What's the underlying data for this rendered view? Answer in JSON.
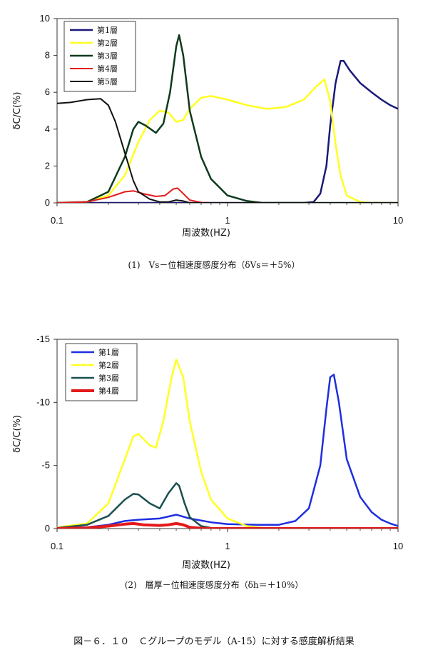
{
  "figure_caption": "図－６．１０　Ｃグループのモデル（A-15）に対する感度解析結果",
  "chart_data": [
    {
      "type": "line",
      "caption": "(1)　Vs－位相速度感度分布（δVs＝＋5%）",
      "xlabel": "周波数(HZ)",
      "ylabel": "δC/C(%)",
      "xscale": "log",
      "xlim": [
        0.1,
        10
      ],
      "ylim": [
        0,
        10
      ],
      "x_ticks": [
        "0.1",
        "1",
        "10"
      ],
      "y_ticks": [
        "0",
        "2",
        "4",
        "6",
        "8",
        "10"
      ],
      "legend_position": "top-left",
      "grid": false,
      "series": [
        {
          "name": "第1層",
          "color": "#1a1a7a",
          "width": 2.5,
          "points": [
            [
              0.1,
              0
            ],
            [
              2.8,
              0
            ],
            [
              3.2,
              0.05
            ],
            [
              3.5,
              0.5
            ],
            [
              3.8,
              2.0
            ],
            [
              4.0,
              4.2
            ],
            [
              4.3,
              6.5
            ],
            [
              4.6,
              7.7
            ],
            [
              4.8,
              7.7
            ],
            [
              5.2,
              7.2
            ],
            [
              6,
              6.5
            ],
            [
              7,
              6.0
            ],
            [
              8,
              5.6
            ],
            [
              9,
              5.3
            ],
            [
              10,
              5.1
            ]
          ]
        },
        {
          "name": "第2層",
          "color": "#ffff22",
          "width": 2.5,
          "points": [
            [
              0.1,
              0
            ],
            [
              0.15,
              0.05
            ],
            [
              0.2,
              0.4
            ],
            [
              0.25,
              1.5
            ],
            [
              0.3,
              3.3
            ],
            [
              0.35,
              4.5
            ],
            [
              0.4,
              5.0
            ],
            [
              0.45,
              4.9
            ],
            [
              0.5,
              4.4
            ],
            [
              0.55,
              4.5
            ],
            [
              0.6,
              5.1
            ],
            [
              0.7,
              5.7
            ],
            [
              0.8,
              5.8
            ],
            [
              1.0,
              5.6
            ],
            [
              1.3,
              5.3
            ],
            [
              1.7,
              5.1
            ],
            [
              2.2,
              5.2
            ],
            [
              2.8,
              5.6
            ],
            [
              3.3,
              6.3
            ],
            [
              3.7,
              6.7
            ],
            [
              4.0,
              5.5
            ],
            [
              4.3,
              3.2
            ],
            [
              4.6,
              1.5
            ],
            [
              5.0,
              0.4
            ],
            [
              6,
              0.05
            ],
            [
              7,
              0
            ],
            [
              10,
              0
            ]
          ]
        },
        {
          "name": "第3層",
          "color": "#0d3a1d",
          "width": 2.5,
          "points": [
            [
              0.1,
              0
            ],
            [
              0.15,
              0.05
            ],
            [
              0.2,
              0.6
            ],
            [
              0.25,
              2.5
            ],
            [
              0.28,
              4.0
            ],
            [
              0.3,
              4.4
            ],
            [
              0.33,
              4.2
            ],
            [
              0.38,
              3.8
            ],
            [
              0.42,
              4.3
            ],
            [
              0.46,
              6.0
            ],
            [
              0.5,
              8.5
            ],
            [
              0.52,
              9.1
            ],
            [
              0.55,
              8.0
            ],
            [
              0.6,
              5.0
            ],
            [
              0.7,
              2.5
            ],
            [
              0.8,
              1.3
            ],
            [
              1.0,
              0.4
            ],
            [
              1.3,
              0.1
            ],
            [
              1.6,
              0
            ],
            [
              10,
              0
            ]
          ]
        },
        {
          "name": "第4層",
          "color": "#e41a1a",
          "width": 2,
          "points": [
            [
              0.1,
              0
            ],
            [
              0.15,
              0.05
            ],
            [
              0.2,
              0.3
            ],
            [
              0.25,
              0.6
            ],
            [
              0.28,
              0.65
            ],
            [
              0.32,
              0.5
            ],
            [
              0.38,
              0.35
            ],
            [
              0.43,
              0.4
            ],
            [
              0.48,
              0.75
            ],
            [
              0.51,
              0.8
            ],
            [
              0.55,
              0.5
            ],
            [
              0.6,
              0.15
            ],
            [
              0.7,
              0.02
            ],
            [
              0.8,
              0
            ],
            [
              10,
              0
            ]
          ]
        },
        {
          "name": "第5層",
          "color": "#111111",
          "width": 2,
          "points": [
            [
              0.1,
              5.4
            ],
            [
              0.12,
              5.45
            ],
            [
              0.15,
              5.6
            ],
            [
              0.18,
              5.65
            ],
            [
              0.2,
              5.3
            ],
            [
              0.22,
              4.4
            ],
            [
              0.25,
              2.7
            ],
            [
              0.28,
              1.2
            ],
            [
              0.3,
              0.6
            ],
            [
              0.35,
              0.2
            ],
            [
              0.4,
              0.05
            ],
            [
              0.45,
              0.05
            ],
            [
              0.5,
              0.15
            ],
            [
              0.55,
              0.1
            ],
            [
              0.6,
              0
            ],
            [
              10,
              0
            ]
          ]
        }
      ]
    },
    {
      "type": "line",
      "caption": "(2)　層厚－位相速度感度分布（δh＝＋10%）",
      "xlabel": "周波数(HZ)",
      "ylabel": "δC/C(%)",
      "xscale": "log",
      "xlim": [
        0.1,
        10
      ],
      "ylim": [
        0,
        -15
      ],
      "x_ticks": [
        "0.1",
        "1",
        "10"
      ],
      "y_ticks": [
        "-15",
        "-10",
        "-5",
        "0"
      ],
      "legend_position": "top-left",
      "grid": false,
      "series": [
        {
          "name": "第1層",
          "color": "#1f2ee0",
          "width": 2.5,
          "points": [
            [
              0.1,
              -0.05
            ],
            [
              0.15,
              -0.1
            ],
            [
              0.2,
              -0.3
            ],
            [
              0.25,
              -0.6
            ],
            [
              0.3,
              -0.7
            ],
            [
              0.4,
              -0.8
            ],
            [
              0.5,
              -1.1
            ],
            [
              0.6,
              -0.8
            ],
            [
              0.8,
              -0.5
            ],
            [
              1.0,
              -0.35
            ],
            [
              1.5,
              -0.3
            ],
            [
              2.0,
              -0.3
            ],
            [
              2.5,
              -0.6
            ],
            [
              3.0,
              -1.6
            ],
            [
              3.5,
              -5
            ],
            [
              3.8,
              -9.5
            ],
            [
              4.0,
              -12
            ],
            [
              4.2,
              -12.2
            ],
            [
              4.5,
              -10
            ],
            [
              5.0,
              -5.5
            ],
            [
              6,
              -2.5
            ],
            [
              7,
              -1.3
            ],
            [
              8,
              -0.7
            ],
            [
              9,
              -0.4
            ],
            [
              10,
              -0.2
            ]
          ]
        },
        {
          "name": "第2層",
          "color": "#ffff22",
          "width": 2.5,
          "points": [
            [
              0.1,
              -0.1
            ],
            [
              0.15,
              -0.4
            ],
            [
              0.2,
              -2.0
            ],
            [
              0.25,
              -5.5
            ],
            [
              0.28,
              -7.3
            ],
            [
              0.3,
              -7.5
            ],
            [
              0.35,
              -6.6
            ],
            [
              0.38,
              -6.4
            ],
            [
              0.42,
              -8.5
            ],
            [
              0.47,
              -12
            ],
            [
              0.5,
              -13.4
            ],
            [
              0.55,
              -12
            ],
            [
              0.6,
              -8.5
            ],
            [
              0.7,
              -4.5
            ],
            [
              0.8,
              -2.3
            ],
            [
              1.0,
              -0.8
            ],
            [
              1.3,
              -0.2
            ],
            [
              1.6,
              -0.05
            ],
            [
              10,
              0
            ]
          ]
        },
        {
          "name": "第3層",
          "color": "#1a5050",
          "width": 2.5,
          "points": [
            [
              0.1,
              -0.05
            ],
            [
              0.15,
              -0.3
            ],
            [
              0.2,
              -1.0
            ],
            [
              0.25,
              -2.3
            ],
            [
              0.28,
              -2.75
            ],
            [
              0.3,
              -2.7
            ],
            [
              0.35,
              -2.0
            ],
            [
              0.4,
              -1.6
            ],
            [
              0.45,
              -2.8
            ],
            [
              0.5,
              -3.6
            ],
            [
              0.52,
              -3.4
            ],
            [
              0.56,
              -2.0
            ],
            [
              0.6,
              -0.9
            ],
            [
              0.7,
              -0.2
            ],
            [
              0.8,
              -0.05
            ],
            [
              1.0,
              0
            ],
            [
              10,
              0
            ]
          ]
        },
        {
          "name": "第4層",
          "color": "#e41a1a",
          "width": 4,
          "points": [
            [
              0.1,
              0
            ],
            [
              0.15,
              -0.05
            ],
            [
              0.2,
              -0.2
            ],
            [
              0.25,
              -0.35
            ],
            [
              0.28,
              -0.4
            ],
            [
              0.32,
              -0.3
            ],
            [
              0.4,
              -0.25
            ],
            [
              0.45,
              -0.3
            ],
            [
              0.5,
              -0.4
            ],
            [
              0.55,
              -0.3
            ],
            [
              0.6,
              -0.1
            ],
            [
              0.7,
              -0.02
            ],
            [
              0.8,
              0
            ],
            [
              10,
              0
            ]
          ]
        }
      ]
    }
  ]
}
